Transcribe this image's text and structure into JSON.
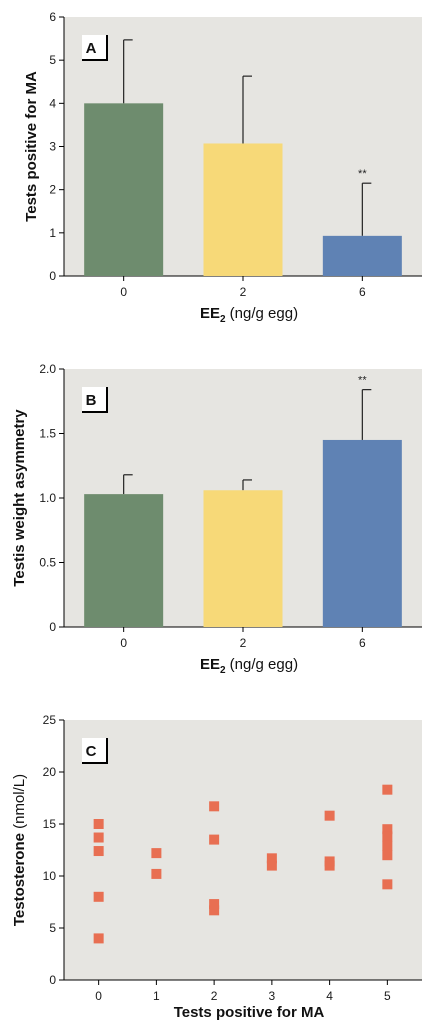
{
  "colors": {
    "plot_bg": "#e6e5e1",
    "bar_0": "#6e8c6e",
    "bar_2": "#f7d978",
    "bar_6": "#5f82b4",
    "scatter": "#e86f52",
    "axis": "#000000"
  },
  "chart_data": [
    {
      "type": "bar",
      "panel_label": "A",
      "categories": [
        "0",
        "2",
        "6"
      ],
      "values": [
        4.0,
        3.07,
        0.93
      ],
      "error_upper": [
        5.47,
        4.63,
        2.15
      ],
      "significance": [
        "",
        "",
        "**"
      ],
      "ylabel": "Tests positive for MA",
      "xlabel": {
        "main": "EE",
        "sub": "2",
        "unit": " (ng/g egg)"
      },
      "ylim": [
        0,
        6
      ],
      "yticks": [
        0,
        1,
        2,
        3,
        4,
        5,
        6
      ],
      "ytick_labels": [
        "0",
        "1",
        "2",
        "3",
        "4",
        "5",
        "6"
      ],
      "grid": false
    },
    {
      "type": "bar",
      "panel_label": "B",
      "categories": [
        "0",
        "2",
        "6"
      ],
      "values": [
        1.03,
        1.06,
        1.45
      ],
      "error_upper": [
        1.18,
        1.14,
        1.84
      ],
      "significance": [
        "",
        "",
        "**"
      ],
      "ylabel": "Testis weight asymmetry",
      "xlabel": {
        "main": "EE",
        "sub": "2",
        "unit": " (ng/g egg)"
      },
      "ylim": [
        0,
        2.0
      ],
      "yticks": [
        0,
        0.5,
        1.0,
        1.5,
        2.0
      ],
      "ytick_labels": [
        "0",
        "0.5",
        "1.0",
        "1.5",
        "2.0"
      ],
      "grid": false
    },
    {
      "type": "scatter",
      "panel_label": "C",
      "points": [
        {
          "x": 0,
          "y": 15.0
        },
        {
          "x": 0,
          "y": 13.7
        },
        {
          "x": 0,
          "y": 12.4
        },
        {
          "x": 0,
          "y": 8.0
        },
        {
          "x": 0,
          "y": 4.0
        },
        {
          "x": 1,
          "y": 12.2
        },
        {
          "x": 1,
          "y": 10.2
        },
        {
          "x": 2,
          "y": 16.7
        },
        {
          "x": 2,
          "y": 13.5
        },
        {
          "x": 2,
          "y": 7.3
        },
        {
          "x": 2,
          "y": 6.7
        },
        {
          "x": 3,
          "y": 11.7
        },
        {
          "x": 3,
          "y": 11.0
        },
        {
          "x": 4,
          "y": 15.8
        },
        {
          "x": 4,
          "y": 11.4
        },
        {
          "x": 4,
          "y": 11.0
        },
        {
          "x": 5,
          "y": 18.3
        },
        {
          "x": 5,
          "y": 14.5
        },
        {
          "x": 5,
          "y": 13.8
        },
        {
          "x": 5,
          "y": 12.9
        },
        {
          "x": 5,
          "y": 12.0
        },
        {
          "x": 5,
          "y": 9.2
        }
      ],
      "ylabel": {
        "main": "Testosterone",
        "unit": " (nmol/L)"
      },
      "xlabel": "Tests positive for MA",
      "xticks": [
        0,
        1,
        2,
        3,
        4,
        5
      ],
      "xtick_labels": [
        "0",
        "1",
        "2",
        "3",
        "4",
        "5"
      ],
      "xlim": [
        -0.6,
        5.6
      ],
      "ylim": [
        0,
        25
      ],
      "yticks": [
        0,
        5,
        10,
        15,
        20,
        25
      ],
      "ytick_labels": [
        "0",
        "5",
        "10",
        "15",
        "20",
        "25"
      ],
      "grid": false
    }
  ]
}
